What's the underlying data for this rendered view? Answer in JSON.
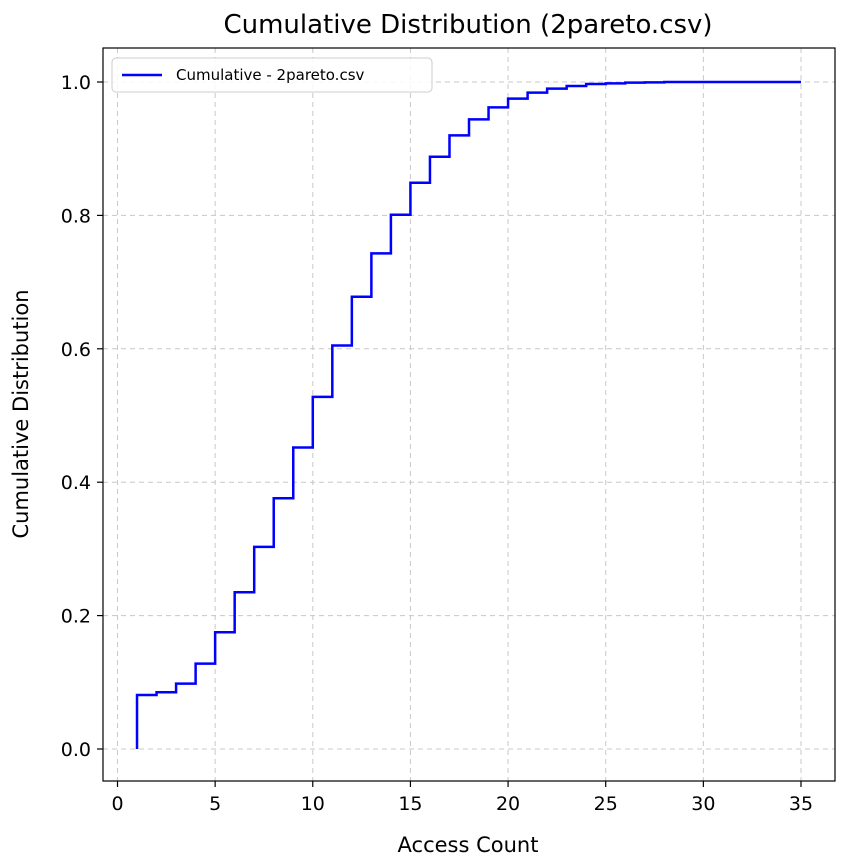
{
  "chart_data": {
    "type": "line",
    "title": "Cumulative Distribution (2pareto.csv)",
    "xlabel": "Access Count",
    "ylabel": "Cumulative Distribution",
    "xlim": [
      0,
      35
    ],
    "ylim": [
      0,
      1.0
    ],
    "xticks": [
      0,
      5,
      10,
      15,
      20,
      25,
      30,
      35
    ],
    "yticks": [
      0.0,
      0.2,
      0.4,
      0.6,
      0.8,
      1.0
    ],
    "grid": true,
    "legend_position": "top-left",
    "step": "post",
    "series": [
      {
        "name": "Cumulative - 2pareto.csv",
        "color": "#0000ff",
        "x": [
          1,
          1,
          2,
          3,
          4,
          5,
          6,
          7,
          8,
          9,
          10,
          11,
          12,
          13,
          14,
          15,
          16,
          17,
          18,
          19,
          20,
          21,
          22,
          23,
          24,
          25,
          26,
          27,
          28,
          29,
          30,
          31,
          32,
          33,
          34,
          35
        ],
        "y": [
          0.0,
          0.081,
          0.085,
          0.098,
          0.128,
          0.175,
          0.235,
          0.303,
          0.376,
          0.452,
          0.528,
          0.605,
          0.678,
          0.743,
          0.801,
          0.849,
          0.888,
          0.92,
          0.944,
          0.962,
          0.975,
          0.984,
          0.99,
          0.994,
          0.997,
          0.998,
          0.999,
          0.9995,
          1.0,
          1.0,
          1.0,
          1.0,
          1.0,
          1.0,
          1.0,
          1.0
        ]
      }
    ]
  }
}
